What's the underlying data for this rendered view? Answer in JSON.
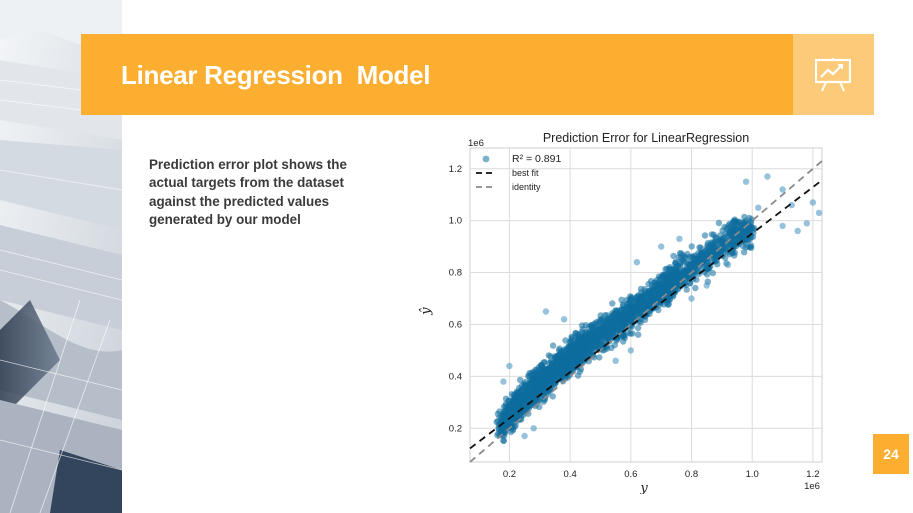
{
  "slide": {
    "title": "Linear Regression  Model",
    "description": "Prediction error plot shows the actual targets from the dataset against the predicted values generated by our model",
    "page_number": "24",
    "title_icon": "presentation-chart-icon",
    "accent_color": "#FBAE2F",
    "accent_light_color": "#FCCB7A"
  },
  "chart_data": {
    "type": "scatter",
    "title": "Prediction Error for LinearRegression",
    "xlabel": "y",
    "ylabel": "ŷ",
    "x_scale_label": "1e6",
    "y_scale_label": "1e6",
    "xlim": [
      0.07,
      1.23
    ],
    "ylim": [
      0.07,
      1.28
    ],
    "xticks": [
      "0.2",
      "0.4",
      "0.6",
      "0.8",
      "1.0",
      "1.2"
    ],
    "yticks": [
      "0.2",
      "0.4",
      "0.6",
      "0.8",
      "1.0",
      "1.2"
    ],
    "grid": true,
    "legend_position": "top-left",
    "legend": [
      {
        "label": "R² = 0.891",
        "kind": "points"
      },
      {
        "label": "best fit",
        "kind": "dashed-line"
      },
      {
        "label": "identity",
        "kind": "dashed-line"
      }
    ],
    "r2": 0.891,
    "best_fit": {
      "slope": 0.891,
      "intercept": 0.06
    },
    "identity": {
      "slope": 1,
      "intercept": 0
    },
    "point_color": "#0e6d9e",
    "best_fit_color": "#111111",
    "identity_color": "#8a8a8a",
    "cloud_centerline": [
      [
        0.18,
        0.22
      ],
      [
        0.25,
        0.32
      ],
      [
        0.35,
        0.42
      ],
      [
        0.45,
        0.52
      ],
      [
        0.55,
        0.6
      ],
      [
        0.65,
        0.68
      ],
      [
        0.75,
        0.78
      ],
      [
        0.85,
        0.86
      ],
      [
        0.95,
        0.95
      ]
    ],
    "outliers": [
      [
        1.05,
        1.17
      ],
      [
        1.1,
        1.12
      ],
      [
        1.13,
        1.06
      ],
      [
        1.2,
        1.07
      ],
      [
        1.22,
        1.03
      ],
      [
        1.18,
        0.99
      ],
      [
        1.15,
        0.96
      ],
      [
        1.1,
        0.98
      ],
      [
        0.98,
        1.15
      ],
      [
        1.02,
        1.05
      ],
      [
        0.32,
        0.65
      ],
      [
        0.38,
        0.62
      ],
      [
        0.62,
        0.84
      ],
      [
        0.7,
        0.9
      ],
      [
        0.76,
        0.93
      ],
      [
        0.8,
        0.7
      ],
      [
        0.85,
        0.75
      ],
      [
        0.92,
        0.83
      ],
      [
        0.6,
        0.5
      ],
      [
        0.55,
        0.46
      ],
      [
        0.28,
        0.2
      ],
      [
        0.25,
        0.17
      ],
      [
        0.2,
        0.44
      ],
      [
        0.18,
        0.38
      ]
    ]
  }
}
